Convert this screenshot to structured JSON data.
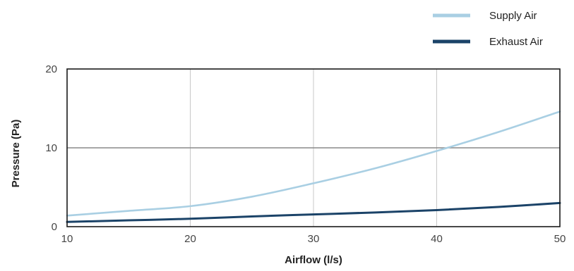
{
  "chart_data": {
    "type": "line",
    "title": "",
    "xlabel": "Airflow (l/s)",
    "ylabel": "Pressure (Pa)",
    "xlim": [
      10,
      50
    ],
    "ylim": [
      0,
      20
    ],
    "xticks": [
      10,
      20,
      30,
      40,
      50
    ],
    "yticks": [
      0,
      10,
      20
    ],
    "grid": true,
    "legend_position": "top-right",
    "series": [
      {
        "name": "Supply Air",
        "color": "#a9cfe3",
        "x": [
          10,
          15,
          20,
          25,
          30,
          35,
          40,
          45,
          50
        ],
        "y": [
          1.4,
          2.0,
          2.6,
          3.8,
          5.5,
          7.4,
          9.6,
          12.0,
          14.6
        ]
      },
      {
        "name": "Exhaust Air",
        "color": "#1b4368",
        "x": [
          10,
          15,
          20,
          25,
          30,
          35,
          40,
          45,
          50
        ],
        "y": [
          0.6,
          0.8,
          1.0,
          1.3,
          1.55,
          1.8,
          2.1,
          2.5,
          3.0
        ]
      }
    ]
  }
}
